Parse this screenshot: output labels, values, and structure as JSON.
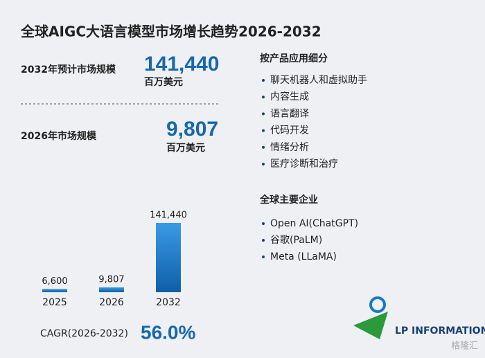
{
  "title": "全球AIGC大语言模型市场增长趋势2026-2032",
  "left": {
    "label_2032": "2032年预计市场规模",
    "value_2032": "141,440",
    "unit_2032": "百万美元",
    "label_2026": "2026年市场规模",
    "value_2026": "9,807",
    "unit_2026": "百万美元",
    "cagr_label": "CAGR(2026-2032)",
    "cagr_value": "56.0%"
  },
  "chart_data": {
    "type": "bar",
    "categories": [
      "2025",
      "2026",
      "2032"
    ],
    "values": [
      6600,
      9807,
      141440
    ],
    "value_labels": [
      "6,600",
      "9,807",
      "141,440"
    ],
    "color": "#1a78c8"
  },
  "right": {
    "segment_title": "按产品应用细分",
    "segments": [
      "聊天机器人和虚拟助手",
      "内容生成",
      "语言翻译",
      "代码开发",
      "情绪分析",
      "医疗诊断和治疗"
    ],
    "companies_title": "全球主要企业",
    "companies": [
      "Open AI(ChatGPT)",
      "谷歌(PaLM)",
      "Meta (LLaMA)"
    ]
  },
  "logo": "LP INFORMATION",
  "watermark": "格隆汇"
}
